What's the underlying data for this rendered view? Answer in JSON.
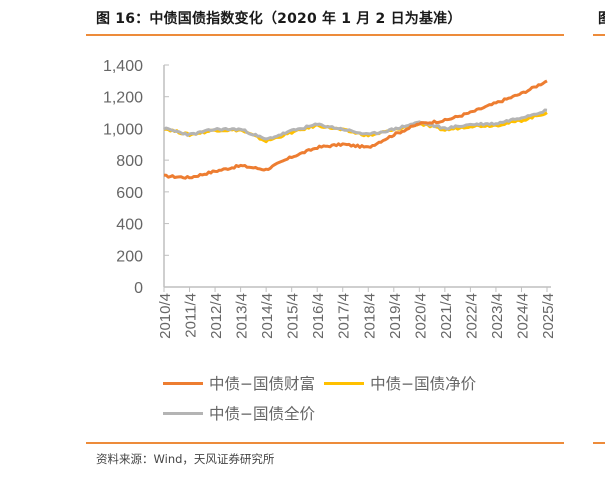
{
  "header": {
    "title": "图 16：中债国债指数变化（2020 年 1 月 2 日为基准）",
    "title_right_fragment": "图"
  },
  "footer": {
    "source": "资料来源：Wind，天风证券研究所"
  },
  "colors": {
    "accent_rule": "#ed8b3a",
    "wealth": "#ed7d31",
    "net": "#ffc000",
    "full": "#b4b4b4",
    "axis": "#bfbfbf",
    "tick_label": "#666666"
  },
  "legend": [
    {
      "label": "中债−国债财富",
      "color": "#ed7d31"
    },
    {
      "label": "中债−国债净价",
      "color": "#ffc000"
    },
    {
      "label": "中债−国债全价",
      "color": "#b4b4b4"
    }
  ],
  "chart_data": {
    "type": "line",
    "title": "图 16：中债国债指数变化（2020 年 1 月 2 日为基准）",
    "xlabel": "",
    "ylabel": "",
    "ylim": [
      0,
      1400
    ],
    "yticks": [
      "0",
      "200",
      "400",
      "600",
      "800",
      "1,000",
      "1,200",
      "1,400"
    ],
    "grid": false,
    "legend_position": "bottom",
    "x": [
      "2010/4",
      "2011/4",
      "2012/4",
      "2013/4",
      "2014/4",
      "2015/4",
      "2016/4",
      "2017/4",
      "2018/4",
      "2019/4",
      "2020/4",
      "2021/4",
      "2022/4",
      "2023/4",
      "2024/4",
      "2025/4"
    ],
    "series": [
      {
        "name": "中债−国债财富",
        "values": [
          700,
          690,
          730,
          765,
          740,
          820,
          880,
          900,
          880,
          960,
          1030,
          1050,
          1100,
          1160,
          1220,
          1300
        ]
      },
      {
        "name": "中债−国债净价",
        "values": [
          1000,
          960,
          990,
          990,
          920,
          975,
          1020,
          990,
          955,
          990,
          1030,
          990,
          1015,
          1020,
          1050,
          1100
        ]
      },
      {
        "name": "中债−国债全价",
        "values": [
          1000,
          960,
          995,
          995,
          930,
          985,
          1025,
          995,
          960,
          995,
          1040,
          1000,
          1025,
          1030,
          1070,
          1115
        ]
      }
    ]
  }
}
